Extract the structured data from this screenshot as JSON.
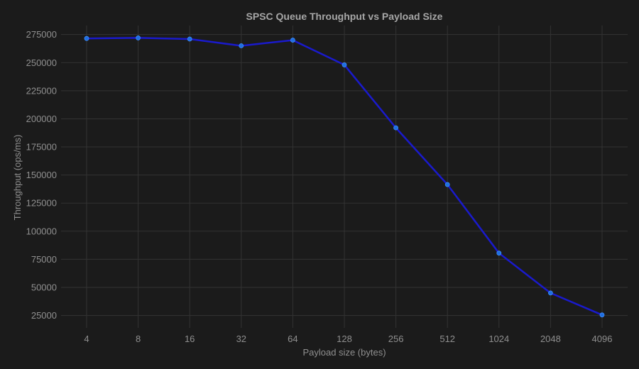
{
  "chart_data": {
    "type": "line",
    "title": "SPSC Queue Throughput vs Payload Size",
    "xlabel": "Payload size (bytes)",
    "ylabel": "Throughput (ops/ms)",
    "categories": [
      "4",
      "8",
      "16",
      "32",
      "64",
      "128",
      "256",
      "512",
      "1024",
      "2048",
      "4096"
    ],
    "series": [
      {
        "values": [
          271500,
          272000,
          271000,
          265000,
          270000,
          248000,
          192000,
          141500,
          80500,
          45000,
          25500
        ],
        "color": "#1a1acc",
        "marker_color": "#1f6fe0"
      }
    ],
    "yticks": [
      25000,
      50000,
      75000,
      100000,
      125000,
      150000,
      175000,
      200000,
      225000,
      250000,
      275000
    ],
    "ylim": [
      14000,
      283000
    ],
    "grid": true,
    "legend": "none"
  }
}
